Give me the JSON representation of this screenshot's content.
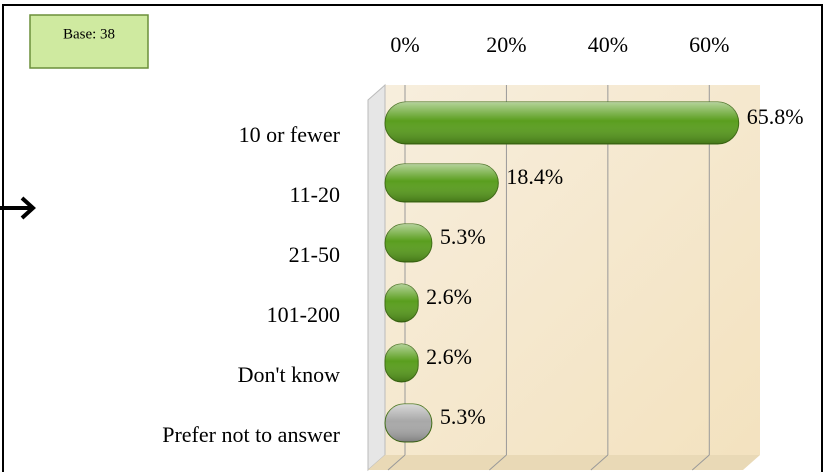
{
  "chart_data": {
    "type": "bar",
    "orientation": "horizontal",
    "annotation": "Base: 38",
    "categories": [
      "10 or fewer",
      "11-20",
      "21-50",
      "101-200",
      "Don't know",
      "Prefer not to answer"
    ],
    "values": [
      65.8,
      18.4,
      5.3,
      2.6,
      2.6,
      5.3
    ],
    "value_labels": [
      "65.8%",
      "18.4%",
      "5.3%",
      "2.6%",
      "2.6%",
      "5.3%"
    ],
    "colors": [
      "#5a9e1e",
      "#5a9e1e",
      "#5a9e1e",
      "#5a9e1e",
      "#5a9e1e",
      "#a8a8a8"
    ],
    "xlim": [
      0,
      70
    ],
    "xticks": [
      {
        "value": 0,
        "label": "0%"
      },
      {
        "value": 20,
        "label": "20%"
      },
      {
        "value": 40,
        "label": "40%"
      },
      {
        "value": 60,
        "label": "60%"
      }
    ],
    "grid": true
  }
}
